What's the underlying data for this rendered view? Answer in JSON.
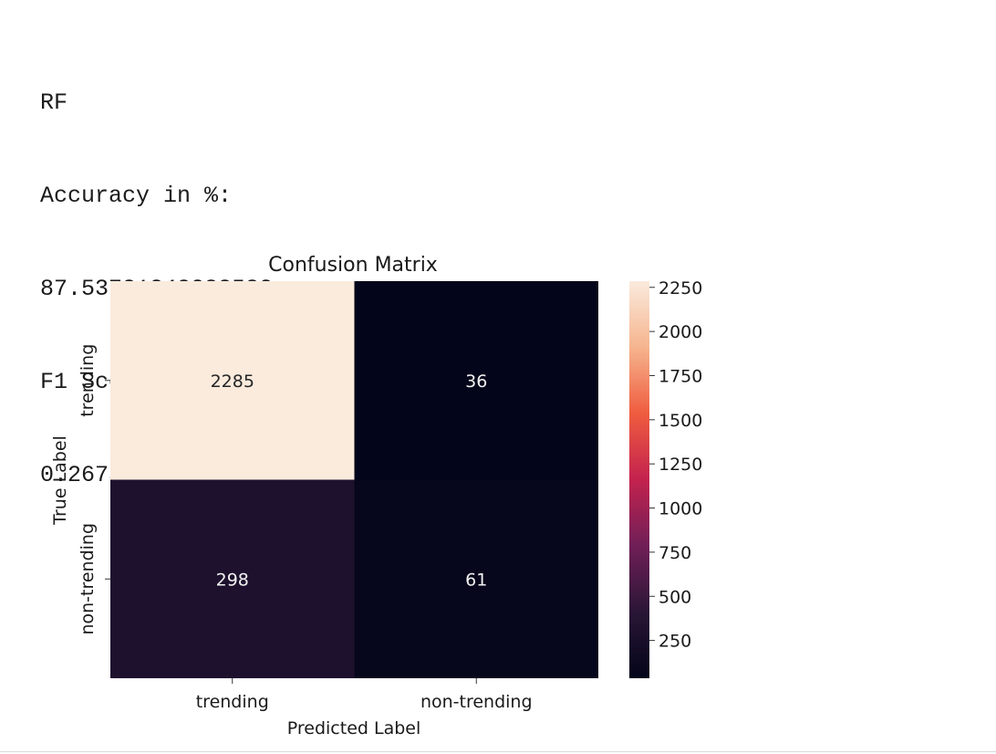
{
  "output": {
    "model": "RF",
    "accuracy_label": "Accuracy in %:",
    "accuracy_value": "87.53731343283582",
    "f1_label": "F1 Score",
    "f1_value": "0.26754385964912275"
  },
  "chart_data": {
    "type": "heatmap",
    "title": "Confusion Matrix",
    "xlabel": "Predicted Label",
    "ylabel": "True Label",
    "x_categories": [
      "trending",
      "non-trending"
    ],
    "y_categories": [
      "trending",
      "non-trending"
    ],
    "values": [
      [
        2285,
        36
      ],
      [
        298,
        61
      ]
    ],
    "cell_labels": [
      "2285",
      "36",
      "298",
      "61"
    ],
    "colorbar": {
      "ticks": [
        250,
        500,
        750,
        1000,
        1250,
        1500,
        1750,
        2000,
        2250
      ],
      "tick_labels": [
        "250",
        "500",
        "750",
        "1000",
        "1250",
        "1500",
        "1750",
        "2000",
        "2250"
      ],
      "range": [
        36,
        2285
      ],
      "colormap": "rocket",
      "stops": [
        "#03051a",
        "#2a1636",
        "#701f57",
        "#c3224e",
        "#ef5c3f",
        "#f6b48e",
        "#faebdd"
      ]
    }
  }
}
